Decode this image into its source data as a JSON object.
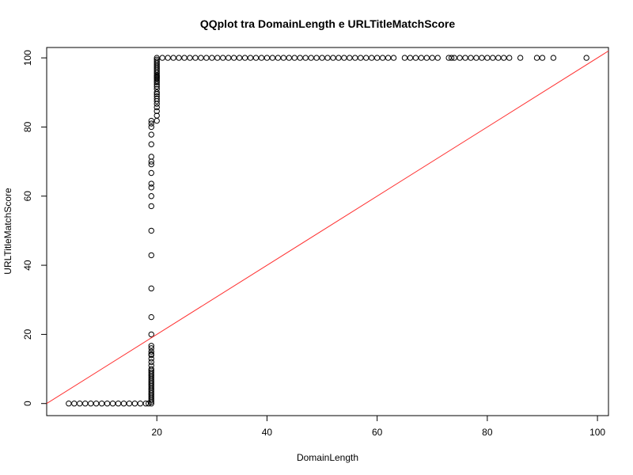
{
  "chart_data": {
    "type": "scatter",
    "title": "QQplot tra DomainLength e URLTitleMatchScore",
    "xlabel": "DomainLength",
    "ylabel": "URLTitleMatchScore",
    "xlim": [
      0,
      102
    ],
    "ylim": [
      -3.5,
      103
    ],
    "x_ticks": [
      20,
      40,
      60,
      80,
      100
    ],
    "y_ticks": [
      0,
      20,
      40,
      60,
      80,
      100
    ],
    "grid": false,
    "legend": "none",
    "point_color": "#000000",
    "line_color": "#ff3030",
    "reference_line": {
      "intercept": 0,
      "slope": 1
    },
    "series": [
      {
        "points": [
          [
            4,
            0
          ],
          [
            5,
            0
          ],
          [
            6,
            0
          ],
          [
            7,
            0
          ],
          [
            8,
            0
          ],
          [
            9,
            0
          ],
          [
            10,
            0
          ],
          [
            11,
            0
          ],
          [
            12,
            0
          ],
          [
            13,
            0
          ],
          [
            14,
            0
          ],
          [
            15,
            0
          ],
          [
            16,
            0
          ],
          [
            17,
            0
          ],
          [
            18,
            0
          ],
          [
            18.5,
            0
          ],
          [
            19,
            0
          ],
          [
            19,
            0.5
          ],
          [
            19,
            1
          ],
          [
            19,
            1.5
          ],
          [
            19,
            2
          ],
          [
            19,
            2.5
          ],
          [
            19,
            3
          ],
          [
            19,
            3.5
          ],
          [
            19,
            4
          ],
          [
            19,
            4.5
          ],
          [
            19,
            5
          ],
          [
            19,
            5.5
          ],
          [
            19,
            6
          ],
          [
            19,
            6.5
          ],
          [
            19,
            7
          ],
          [
            19,
            7.5
          ],
          [
            19,
            8
          ],
          [
            19,
            8.5
          ],
          [
            19,
            9
          ],
          [
            19,
            9.5
          ],
          [
            19,
            10
          ],
          [
            19,
            11
          ],
          [
            19,
            12
          ],
          [
            19,
            13
          ],
          [
            19,
            14
          ],
          [
            19,
            14.3
          ],
          [
            19,
            15
          ],
          [
            19,
            16
          ],
          [
            19,
            16.7
          ],
          [
            19,
            20
          ],
          [
            19,
            25
          ],
          [
            19,
            33.3
          ],
          [
            19,
            42.9
          ],
          [
            19,
            50
          ],
          [
            19,
            57.1
          ],
          [
            19,
            60
          ],
          [
            19,
            62.5
          ],
          [
            19,
            63.6
          ],
          [
            19,
            66.7
          ],
          [
            19,
            69.2
          ],
          [
            19,
            70
          ],
          [
            19,
            71.4
          ],
          [
            19,
            75
          ],
          [
            19,
            77.8
          ],
          [
            19,
            80
          ],
          [
            19,
            81
          ],
          [
            19,
            81.8
          ],
          [
            20,
            81.8
          ],
          [
            20,
            83.3
          ],
          [
            20,
            84.6
          ],
          [
            20,
            85.7
          ],
          [
            20,
            86.7
          ],
          [
            20,
            87.5
          ],
          [
            20,
            88.2
          ],
          [
            20,
            88.9
          ],
          [
            20,
            89.5
          ],
          [
            20,
            90
          ],
          [
            20,
            91
          ],
          [
            20,
            91.7
          ],
          [
            20,
            92.3
          ],
          [
            20,
            92.9
          ],
          [
            20,
            93.3
          ],
          [
            20,
            93.8
          ],
          [
            20,
            94.1
          ],
          [
            20,
            94.4
          ],
          [
            20,
            94.7
          ],
          [
            20,
            95
          ],
          [
            20,
            95.5
          ],
          [
            20,
            96
          ],
          [
            20,
            96.5
          ],
          [
            20,
            97
          ],
          [
            20,
            97.5
          ],
          [
            20,
            98
          ],
          [
            20,
            98.5
          ],
          [
            20,
            99
          ],
          [
            20,
            99.5
          ],
          [
            20,
            100
          ],
          [
            21,
            100
          ],
          [
            22,
            100
          ],
          [
            23,
            100
          ],
          [
            24,
            100
          ],
          [
            25,
            100
          ],
          [
            26,
            100
          ],
          [
            27,
            100
          ],
          [
            28,
            100
          ],
          [
            29,
            100
          ],
          [
            30,
            100
          ],
          [
            31,
            100
          ],
          [
            32,
            100
          ],
          [
            33,
            100
          ],
          [
            34,
            100
          ],
          [
            35,
            100
          ],
          [
            36,
            100
          ],
          [
            37,
            100
          ],
          [
            38,
            100
          ],
          [
            39,
            100
          ],
          [
            40,
            100
          ],
          [
            41,
            100
          ],
          [
            42,
            100
          ],
          [
            43,
            100
          ],
          [
            44,
            100
          ],
          [
            45,
            100
          ],
          [
            46,
            100
          ],
          [
            47,
            100
          ],
          [
            48,
            100
          ],
          [
            49,
            100
          ],
          [
            50,
            100
          ],
          [
            51,
            100
          ],
          [
            52,
            100
          ],
          [
            53,
            100
          ],
          [
            54,
            100
          ],
          [
            55,
            100
          ],
          [
            56,
            100
          ],
          [
            57,
            100
          ],
          [
            58,
            100
          ],
          [
            59,
            100
          ],
          [
            60,
            100
          ],
          [
            61,
            100
          ],
          [
            62,
            100
          ],
          [
            63,
            100
          ],
          [
            65,
            100
          ],
          [
            66,
            100
          ],
          [
            67,
            100
          ],
          [
            68,
            100
          ],
          [
            69,
            100
          ],
          [
            70,
            100
          ],
          [
            71,
            100
          ],
          [
            73,
            100
          ],
          [
            73.5,
            100
          ],
          [
            74,
            100
          ],
          [
            75,
            100
          ],
          [
            76,
            100
          ],
          [
            77,
            100
          ],
          [
            78,
            100
          ],
          [
            79,
            100
          ],
          [
            80,
            100
          ],
          [
            81,
            100
          ],
          [
            82,
            100
          ],
          [
            83,
            100
          ],
          [
            84,
            100
          ],
          [
            86,
            100
          ],
          [
            89,
            100
          ],
          [
            90,
            100
          ],
          [
            92,
            100
          ],
          [
            98,
            100
          ]
        ]
      }
    ]
  }
}
